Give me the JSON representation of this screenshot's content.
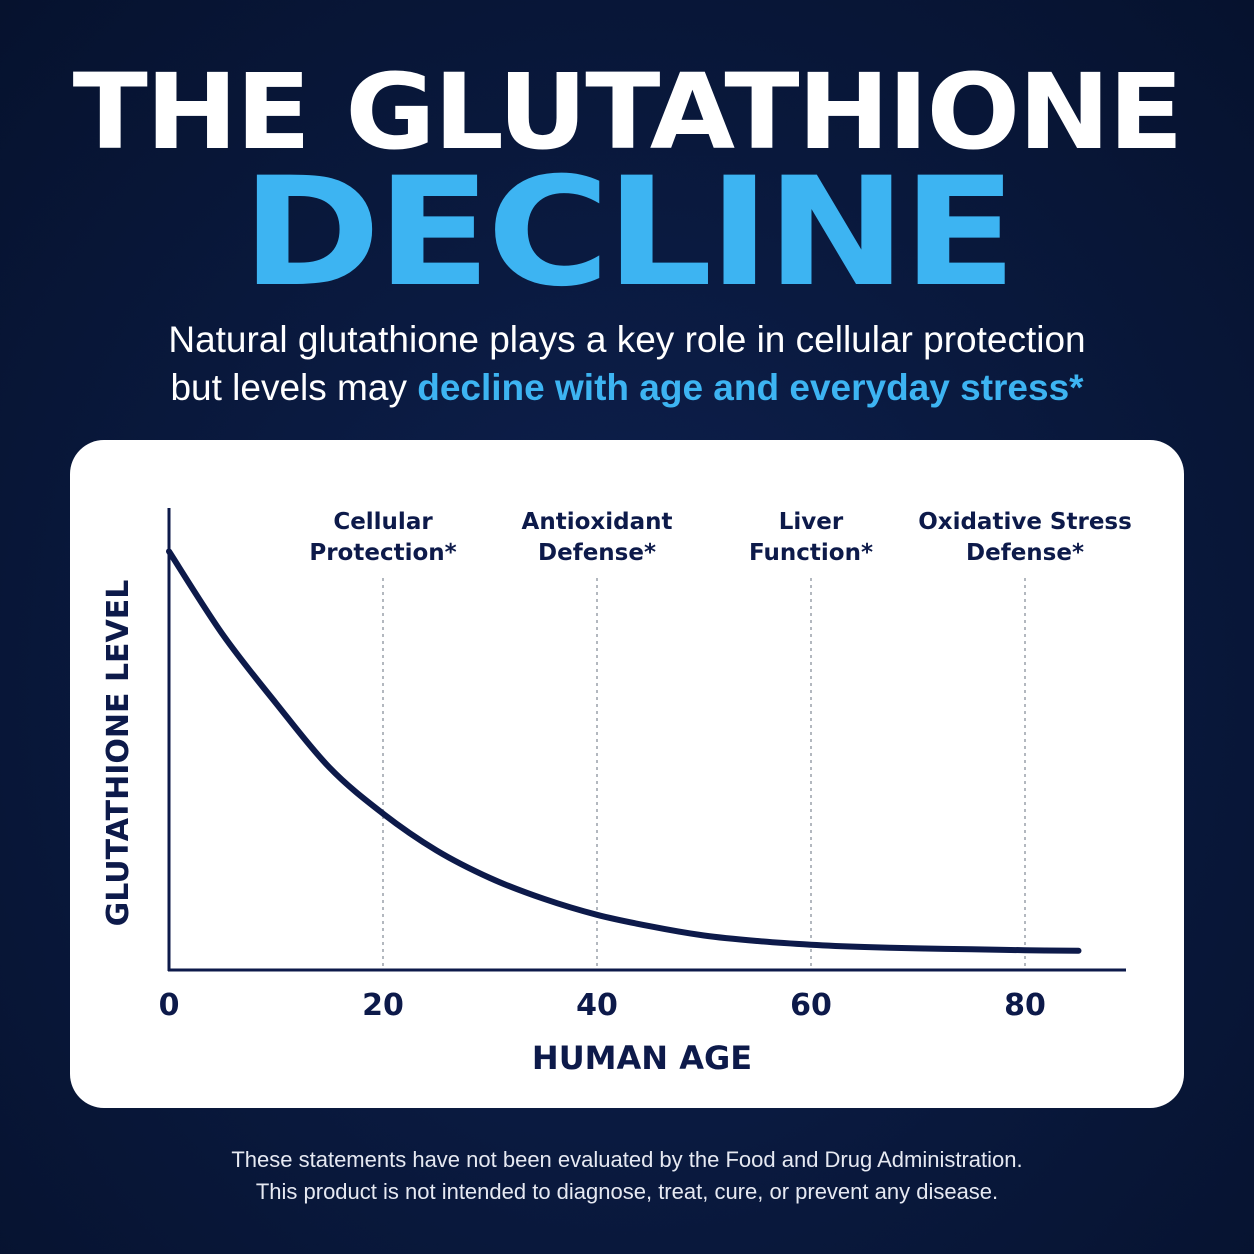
{
  "heading": {
    "line1": "THE GLUTATHIONE",
    "line2": "DECLINE"
  },
  "subtitle": {
    "line1": "Natural glutathione plays a key role in cellular protection",
    "line2_plain": "but levels may ",
    "line2_highlight": "decline with age and everyday stress*"
  },
  "disclaimer": {
    "line1": "These statements have not been evaluated by the Food and Drug Administration.",
    "line2": "This product is not intended to diagnose, treat, cure, or prevent any disease."
  },
  "colors": {
    "background": "#0a1a40",
    "accent": "#3db4f2",
    "chart_ink": "#0d1a4a",
    "card": "#ffffff"
  },
  "chart_data": {
    "type": "line",
    "xlabel": "HUMAN AGE",
    "ylabel": "GLUTATHIONE LEVEL",
    "xlim": [
      0,
      88
    ],
    "ylim": [
      0,
      100
    ],
    "x_ticks": [
      0,
      20,
      40,
      60,
      80
    ],
    "y_ticks_shown": false,
    "grid": false,
    "series": [
      {
        "x": [
          0,
          5,
          10,
          15,
          20,
          25,
          30,
          35,
          40,
          45,
          50,
          55,
          60,
          65,
          70,
          75,
          80,
          85
        ],
        "y": [
          91,
          73,
          58,
          44,
          34,
          26,
          20,
          15.5,
          12,
          9.5,
          7.5,
          6.3,
          5.5,
          5,
          4.7,
          4.5,
          4.3,
          4.2
        ]
      }
    ],
    "annotations": [
      {
        "x": 20,
        "line1": "Cellular",
        "line2": "Protection*"
      },
      {
        "x": 40,
        "line1": "Antioxidant",
        "line2": "Defense*"
      },
      {
        "x": 60,
        "line1": "Liver",
        "line2": "Function*"
      },
      {
        "x": 80,
        "line1": "Oxidative Stress",
        "line2": "Defense*"
      }
    ]
  }
}
